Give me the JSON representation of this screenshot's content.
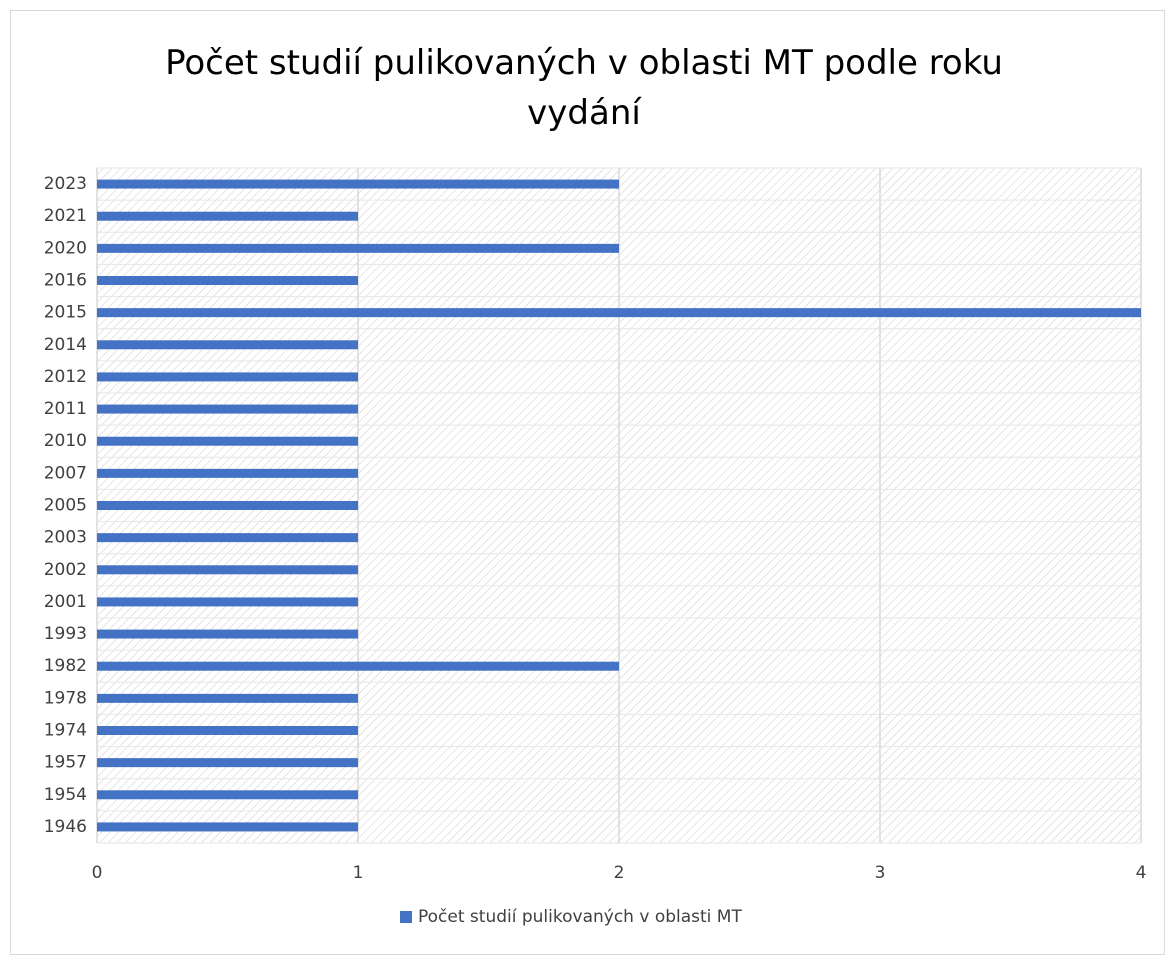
{
  "chart_data": {
    "type": "barh",
    "title": "Počet studií pulikovaných v oblasti MT podle roku vydání",
    "categories": [
      "1946",
      "1954",
      "1957",
      "1974",
      "1978",
      "1982",
      "1993",
      "2001",
      "2002",
      "2003",
      "2005",
      "2007",
      "2010",
      "2011",
      "2012",
      "2014",
      "2015",
      "2016",
      "2020",
      "2021",
      "2023"
    ],
    "series": [
      {
        "name": "Počet studií pulikovaných v oblasti MT",
        "color": "#4472c4",
        "values": [
          1,
          1,
          1,
          1,
          1,
          2,
          1,
          1,
          1,
          1,
          1,
          1,
          1,
          1,
          1,
          1,
          4,
          1,
          2,
          1,
          2
        ]
      }
    ],
    "xlim": [
      0,
      4
    ],
    "xticks": [
      0,
      1,
      2,
      3,
      4
    ],
    "grid": true,
    "legend": "bottom"
  }
}
